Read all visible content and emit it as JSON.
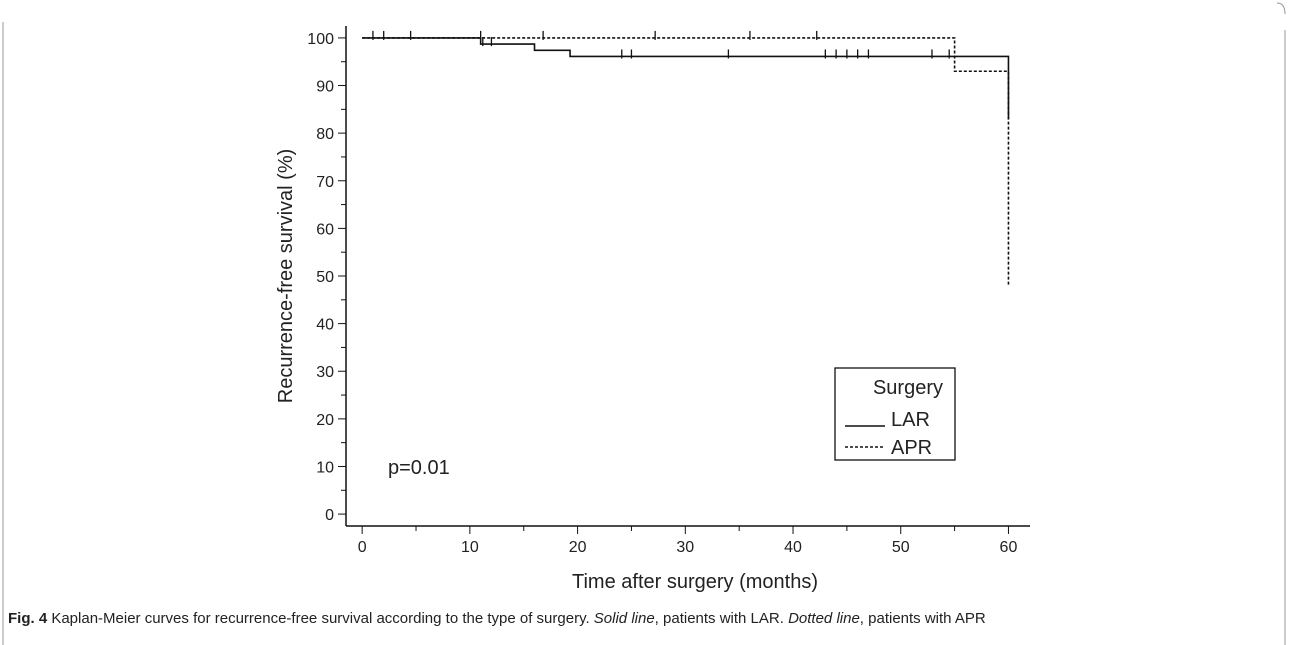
{
  "chart_data": {
    "type": "step",
    "x_label": "Time after surgery (months)",
    "y_label": "Recurrence-free survival (%)",
    "annotation": "p=0.01",
    "legend_title": "Surgery",
    "legend_position": "lower right",
    "xlim": [
      -1.5,
      62
    ],
    "ylim": [
      -2.5,
      102.5
    ],
    "xticks": [
      0,
      10,
      20,
      30,
      40,
      50,
      60
    ],
    "yticks": [
      0,
      10,
      20,
      30,
      40,
      50,
      60,
      70,
      80,
      90,
      100
    ],
    "xminor_ticks": [
      5,
      15,
      25,
      35,
      45,
      55
    ],
    "yminor_ticks": [
      5,
      15,
      25,
      35,
      45,
      55,
      65,
      75,
      85,
      95
    ],
    "series": [
      {
        "name": "LAR",
        "color": "#111111",
        "dash": "solid",
        "x": [
          0,
          11,
          16,
          19.3,
          60,
          60
        ],
        "values": [
          100,
          98.7,
          97.4,
          96.1,
          96.1,
          83
        ],
        "censored_x": [
          1,
          2,
          4.5,
          11.2,
          12,
          24.1,
          25,
          34,
          43,
          44,
          45,
          46,
          47,
          52.9,
          54.5
        ]
      },
      {
        "name": "APR",
        "color": "#111111",
        "dash": "dotted",
        "x": [
          0,
          55,
          60,
          60
        ],
        "values": [
          100,
          93,
          93,
          48
        ],
        "censored_x": [
          11,
          16.8,
          27.2,
          36,
          42.2
        ]
      }
    ]
  },
  "caption": {
    "label": "Fig. 4",
    "text1": " Kaplan-Meier curves for recurrence-free survival according to the type of surgery. ",
    "italic1": "Solid line",
    "text2": ", patients with LAR. ",
    "italic2": "Dotted line",
    "text3": ", patients with APR"
  }
}
